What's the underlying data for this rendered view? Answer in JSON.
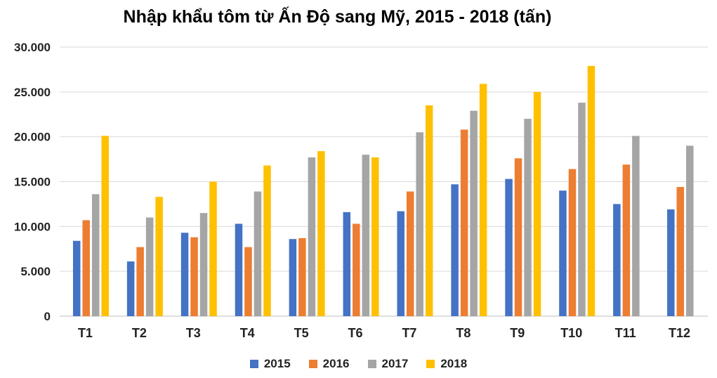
{
  "chart_data": {
    "type": "bar",
    "title": "Nhập khẩu tôm từ Ấn Độ sang Mỹ, 2015 - 2018 (tấn)",
    "xlabel": "",
    "ylabel": "",
    "ylim": [
      0,
      30000
    ],
    "yticks": [
      0,
      5000,
      10000,
      15000,
      20000,
      25000,
      30000
    ],
    "ytick_labels": [
      "0",
      "5.000",
      "10.000",
      "15.000",
      "20.000",
      "25.000",
      "30.000"
    ],
    "grid": true,
    "legend_position": "bottom",
    "categories": [
      "T1",
      "T2",
      "T3",
      "T4",
      "T5",
      "T6",
      "T7",
      "T8",
      "T9",
      "T10",
      "T11",
      "T12"
    ],
    "series": [
      {
        "name": "2015",
        "color": "#4472C4",
        "values": [
          8400,
          6100,
          9300,
          10300,
          8600,
          11600,
          11700,
          14700,
          15300,
          14000,
          12500,
          11900
        ]
      },
      {
        "name": "2016",
        "color": "#ED7D31",
        "values": [
          10700,
          7700,
          8800,
          7700,
          8700,
          10300,
          13900,
          20800,
          17600,
          16400,
          16900,
          14400
        ]
      },
      {
        "name": "2017",
        "color": "#A5A5A5",
        "values": [
          13600,
          11000,
          11500,
          13900,
          17700,
          18000,
          20500,
          22900,
          22000,
          23800,
          20100,
          19000
        ]
      },
      {
        "name": "2018",
        "color": "#FFC000",
        "values": [
          20100,
          13300,
          15000,
          16800,
          18400,
          17700,
          23500,
          25900,
          25000,
          27900,
          null,
          null
        ]
      }
    ]
  }
}
